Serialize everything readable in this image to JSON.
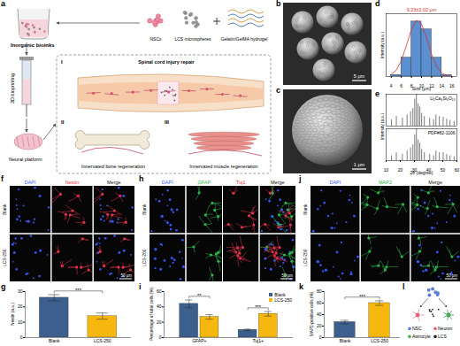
{
  "panel_labels": [
    "a",
    "b",
    "c",
    "d",
    "e",
    "f",
    "g",
    "h",
    "i",
    "j",
    "k",
    "l"
  ],
  "schematic_a": {
    "bioinks": "Inorganic bioinks",
    "nscs": "NSCs",
    "lcs": "LCS microspheres",
    "hydrogel": "Gelatin/GelMA hydrogel",
    "bioprinting": "3D bioprinting",
    "platform": "Neural platform",
    "sci": "Spinal cord injury repair",
    "bone": "Innervated bone regeneration",
    "muscle": "Innervated muscle regeneration",
    "numerals": [
      "I",
      "II",
      "III"
    ]
  },
  "sem": [
    {
      "scale_bar": "5 μm"
    },
    {
      "scale_bar": "1 μm"
    }
  ],
  "micrographs": [
    {
      "rows": [
        "Blank",
        "LCS-250"
      ],
      "channels": [
        "DAPI",
        "Nestin",
        "Merge"
      ],
      "colors": [
        "#3b5bff",
        "#e0304a",
        "#111111"
      ],
      "scale_bar": "50 μm"
    },
    {
      "rows": [
        "Blank",
        "LCS-250"
      ],
      "channels": [
        "DAPI",
        "GFAP",
        "Tuj1",
        "Merge"
      ],
      "colors": [
        "#3b5bff",
        "#2bb34a",
        "#e0304a",
        "#111111"
      ],
      "scale_bar": "50 μm"
    },
    {
      "rows": [
        "Blank",
        "LCS-250"
      ],
      "channels": [
        "DAPI",
        "MAP2",
        "Merge"
      ],
      "colors": [
        "#3b5bff",
        "#2bb34a",
        "#111111"
      ],
      "scale_bar": "50 μm"
    }
  ],
  "schematic_l": {
    "labels": [
      "NSC",
      "Neuron",
      "Astrocyte",
      "LCS"
    ],
    "colors": [
      "#5b7fd6",
      "#e0607a",
      "#4aa860",
      "#222222"
    ]
  },
  "chart_data": [
    {
      "type": "histogram",
      "title": "9.23±2.02 μm",
      "xlabel": "Size (μm)",
      "ylabel": "Intensity (a.u.)",
      "bins": [
        4,
        6,
        8,
        10,
        12,
        14,
        16
      ],
      "values": [
        1,
        12,
        35,
        30,
        12,
        1
      ],
      "color": "#5b8fd0",
      "fit": {
        "x": [
          4,
          5,
          6,
          7,
          8,
          9,
          10,
          11,
          12,
          13,
          14,
          15,
          16
        ],
        "values": [
          1.3,
          4.0,
          10.0,
          19.6,
          29.9,
          35.8,
          33.5,
          24.5,
          14.1,
          6.3,
          2.2,
          0.6,
          0.1
        ],
        "color": "#d9302c"
      },
      "xlim": [
        3,
        17
      ],
      "xticks": [
        4,
        6,
        8,
        10,
        12,
        14,
        16
      ],
      "ylim": [
        0,
        40
      ],
      "tick_labels": "x"
    },
    {
      "type": "stick",
      "xlabel": "2θ (degree)",
      "ylabel": "Intensity (a.u.)",
      "xlim": [
        10,
        60
      ],
      "xticks": [
        10,
        20,
        30,
        40,
        50,
        60
      ],
      "ylim": [
        0,
        100
      ],
      "tick_labels": "x",
      "series": [
        {
          "name": "Li₂Ca₄Si₄O₁₃",
          "color": "#222222",
          "x": [
            13.8,
            17.2,
            21.5,
            24.8,
            27.3,
            28.9,
            30.2,
            31.4,
            32.6,
            33.8,
            35.1,
            37.0,
            40.8,
            43.5,
            45.2,
            47.6,
            50.3,
            52.8,
            55.1,
            58.0
          ],
          "values": [
            20,
            30,
            25,
            35,
            45,
            55,
            85,
            100,
            70,
            60,
            40,
            30,
            25,
            20,
            35,
            30,
            28,
            22,
            18,
            15
          ]
        },
        {
          "name": "PDF#82-1106",
          "color": "#222222",
          "x": [
            13.8,
            17.2,
            21.5,
            24.8,
            27.3,
            28.9,
            30.2,
            31.4,
            32.6,
            33.8,
            35.1,
            37.0,
            40.8,
            43.5,
            45.2,
            47.6,
            50.3,
            52.8,
            55.1,
            58.0
          ],
          "values": [
            15,
            25,
            20,
            30,
            40,
            50,
            80,
            100,
            65,
            55,
            35,
            25,
            20,
            15,
            30,
            25,
            25,
            20,
            15,
            12
          ]
        }
      ]
    },
    {
      "type": "bar",
      "ylabel": "Nestin (a.u.)",
      "categories": [
        "Blank",
        "LCS-250"
      ],
      "values": [
        26,
        14
      ],
      "errors": [
        2,
        2
      ],
      "colors": [
        "#3d5f8e",
        "#f6b80f"
      ],
      "ylim": [
        0,
        30
      ],
      "yticks": [
        0,
        10,
        20,
        30
      ],
      "significance": "***"
    },
    {
      "type": "bar",
      "ylabel": "Percentage of total cells (%)",
      "categories": [
        "GFAP+",
        "Tuj1+"
      ],
      "series": [
        {
          "name": "Blank",
          "color": "#3d5f8e",
          "values": [
            44,
            10
          ],
          "errors": [
            5,
            1
          ]
        },
        {
          "name": "LCS-250",
          "color": "#f6b80f",
          "values": [
            27,
            31
          ],
          "errors": [
            3,
            3
          ]
        }
      ],
      "significance": [
        "**",
        "***"
      ],
      "ylim": [
        0,
        60
      ],
      "yticks": [
        0,
        20,
        40,
        60
      ],
      "legend": "top-right"
    },
    {
      "type": "bar",
      "ylabel": "MAP2-positive cells (%)",
      "categories": [
        "Blank",
        "LCS-250"
      ],
      "values": [
        27,
        60
      ],
      "errors": [
        3,
        4
      ],
      "colors": [
        "#3d5f8e",
        "#f6b80f"
      ],
      "ylim": [
        0,
        80
      ],
      "yticks": [
        0,
        20,
        40,
        60,
        80
      ],
      "significance": "***"
    }
  ]
}
